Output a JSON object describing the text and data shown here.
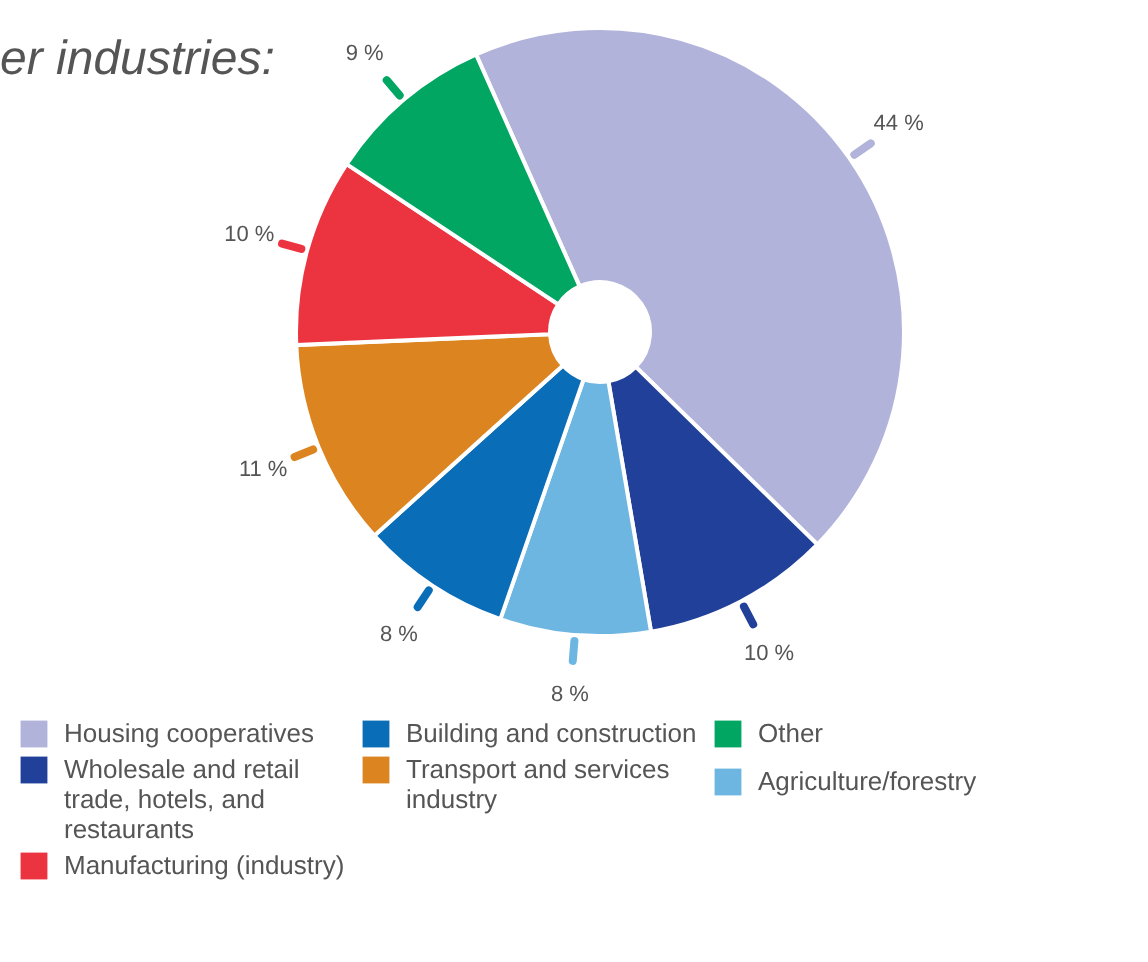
{
  "chart_data": {
    "type": "donut",
    "title": "er industries:",
    "categories": [
      "Housing cooperatives",
      "Wholesale and retail trade, hotels, and restaurants",
      "Agriculture/forestry",
      "Building and construction",
      "Transport and services industry",
      "Manufacturing (industry)",
      "Other"
    ],
    "values": [
      44,
      10,
      8,
      8,
      11,
      10,
      9
    ],
    "colors": [
      "#b1b3da",
      "#21409a",
      "#6cb6e1",
      "#0a6db7",
      "#dc8520",
      "#ec3440",
      "#00a661"
    ],
    "value_labels": [
      "44 %",
      "10 %",
      "8 %",
      "8 %",
      "11 %",
      "10 %",
      "9 %"
    ],
    "legend": "bottom"
  }
}
